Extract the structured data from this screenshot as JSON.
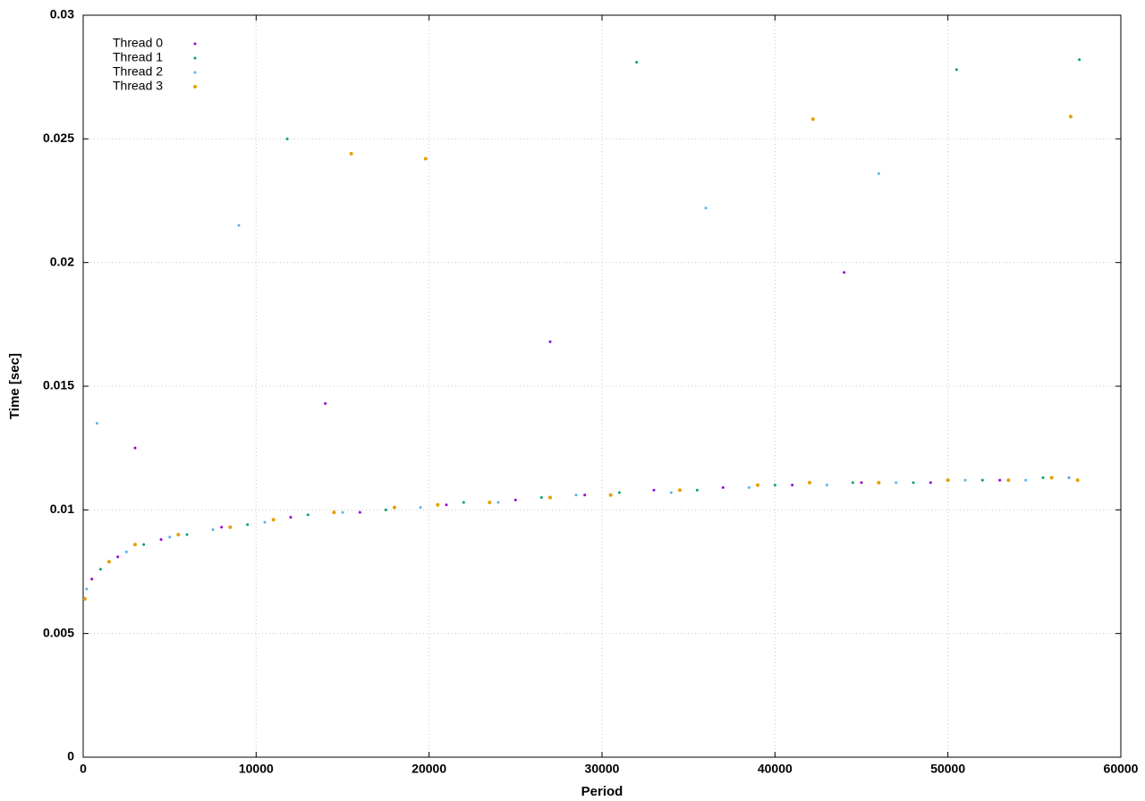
{
  "chart_data": {
    "type": "scatter",
    "xlabel": "Period",
    "ylabel": "Time [sec]",
    "xlim": [
      0,
      60000
    ],
    "ylim": [
      0,
      0.03
    ],
    "xticks": [
      0,
      10000,
      20000,
      30000,
      40000,
      50000,
      60000
    ],
    "yticks": [
      0,
      0.005,
      0.01,
      0.015,
      0.02,
      0.025,
      0.03
    ],
    "grid": true,
    "legend": "top-left",
    "series": [
      {
        "name": "Thread 0",
        "color": "#9400d3",
        "x": [
          500,
          2000,
          4500,
          8000,
          12000,
          16000,
          21000,
          25000,
          29000,
          33000,
          37000,
          41000,
          45000,
          49000,
          53000,
          57000,
          3000,
          14000,
          27000,
          44000
        ],
        "values": [
          0.0072,
          0.0081,
          0.0088,
          0.0093,
          0.0097,
          0.0099,
          0.0102,
          0.0104,
          0.0106,
          0.0108,
          0.0109,
          0.011,
          0.0111,
          0.0111,
          0.0112,
          0.0113,
          0.0125,
          0.0143,
          0.0168,
          0.0196
        ]
      },
      {
        "name": "Thread 1",
        "color": "#009e73",
        "x": [
          1000,
          3500,
          6000,
          9500,
          13000,
          17500,
          22000,
          26500,
          31000,
          35500,
          40000,
          44500,
          48000,
          52000,
          55500,
          57500,
          11800,
          32000,
          50500,
          57600
        ],
        "values": [
          0.0076,
          0.0086,
          0.009,
          0.0094,
          0.0098,
          0.01,
          0.0103,
          0.0105,
          0.0107,
          0.0108,
          0.011,
          0.0111,
          0.0111,
          0.0112,
          0.0113,
          0.0112,
          0.025,
          0.0281,
          0.0278,
          0.0282
        ]
      },
      {
        "name": "Thread 2",
        "color": "#56b4e9",
        "x": [
          200,
          2500,
          5000,
          7500,
          10500,
          15000,
          19500,
          24000,
          28500,
          34000,
          38500,
          43000,
          47000,
          51000,
          54500,
          57000,
          800,
          9000,
          36000,
          46000
        ],
        "values": [
          0.0068,
          0.0083,
          0.0089,
          0.0092,
          0.0095,
          0.0099,
          0.0101,
          0.0103,
          0.0106,
          0.0107,
          0.0109,
          0.011,
          0.0111,
          0.0112,
          0.0112,
          0.0113,
          0.0135,
          0.0215,
          0.0222,
          0.0236
        ]
      },
      {
        "name": "Thread 3",
        "color": "#e69f00",
        "x": [
          100,
          1500,
          3000,
          5500,
          8500,
          11000,
          14500,
          18000,
          20500,
          23500,
          27000,
          30500,
          34500,
          39000,
          42000,
          46000,
          50000,
          53500,
          56000,
          57500,
          15500,
          19800,
          42200,
          57100
        ],
        "values": [
          0.0064,
          0.0079,
          0.0086,
          0.009,
          0.0093,
          0.0096,
          0.0099,
          0.0101,
          0.0102,
          0.0103,
          0.0105,
          0.0106,
          0.0108,
          0.011,
          0.0111,
          0.0111,
          0.0112,
          0.0112,
          0.0113,
          0.0112,
          0.0244,
          0.0242,
          0.0258,
          0.0259
        ]
      }
    ]
  }
}
